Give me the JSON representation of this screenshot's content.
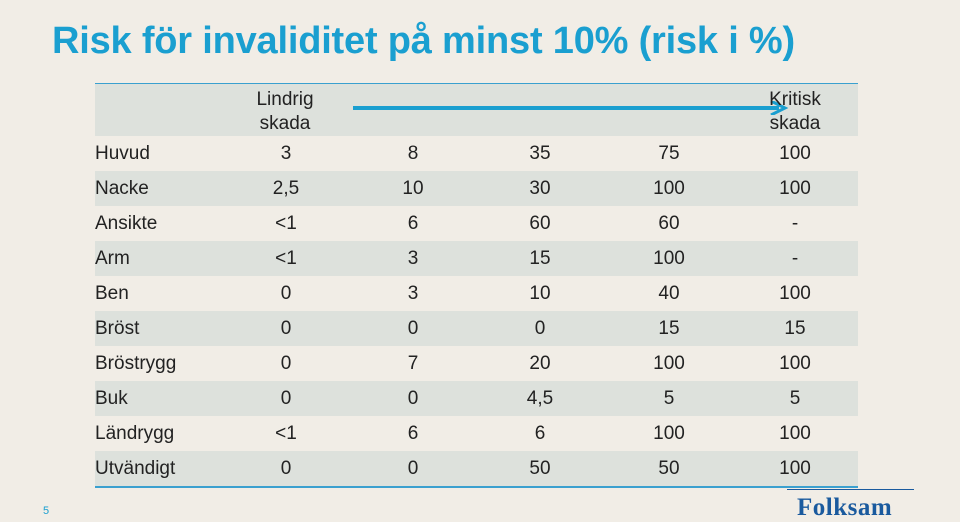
{
  "title": "Risk för invaliditet på minst 10% (risk i %)",
  "header": {
    "left_line1": "Lindrig",
    "left_line2": "skada",
    "right_line1": "Kritisk",
    "right_line2": "skada"
  },
  "rows": [
    {
      "label": "Huvud",
      "values": [
        "3",
        "8",
        "35",
        "75",
        "100"
      ]
    },
    {
      "label": "Nacke",
      "values": [
        "2,5",
        "10",
        "30",
        "100",
        "100"
      ]
    },
    {
      "label": "Ansikte",
      "values": [
        "<1",
        "6",
        "60",
        "60",
        "-"
      ]
    },
    {
      "label": "Arm",
      "values": [
        "<1",
        "3",
        "15",
        "100",
        "-"
      ]
    },
    {
      "label": "Ben",
      "values": [
        "0",
        "3",
        "10",
        "40",
        "100"
      ]
    },
    {
      "label": "Bröst",
      "values": [
        "0",
        "0",
        "0",
        "15",
        "15"
      ]
    },
    {
      "label": "Bröstrygg",
      "values": [
        "0",
        "7",
        "20",
        "100",
        "100"
      ]
    },
    {
      "label": "Buk",
      "values": [
        "0",
        "0",
        "4,5",
        "5",
        "5"
      ]
    },
    {
      "label": "Ländrygg",
      "values": [
        "<1",
        "6",
        "6",
        "100",
        "100"
      ]
    },
    {
      "label": "Utvändigt",
      "values": [
        "0",
        "0",
        "50",
        "50",
        "100"
      ]
    }
  ],
  "slide_number": "5",
  "logo_text": "Folksam",
  "colors": {
    "accent": "#1a9fd0",
    "shade": "#dde1dc",
    "background": "#f1ede6",
    "logo": "#1a5a9e"
  }
}
